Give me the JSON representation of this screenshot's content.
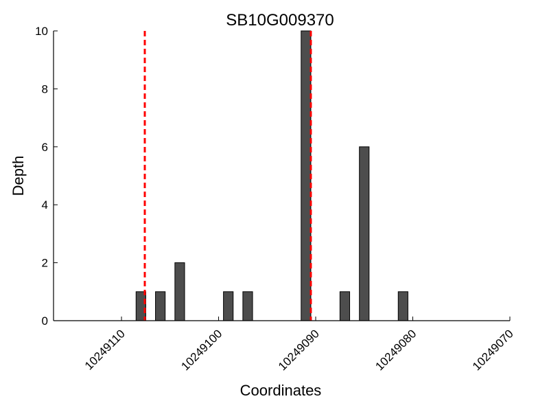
{
  "chart_data": {
    "type": "bar",
    "title": "SB10G009370",
    "xlabel": "Coordinates",
    "ylabel": "Depth",
    "x_reversed": true,
    "xlim": [
      10249117,
      10249070
    ],
    "ylim": [
      0,
      10
    ],
    "x_ticks": [
      10249110,
      10249100,
      10249090,
      10249080,
      10249070
    ],
    "y_ticks": [
      0,
      2,
      4,
      6,
      8,
      10
    ],
    "grid": false,
    "bar_color": "#4d4d4d",
    "bar_edge_color": "#000000",
    "bars": [
      {
        "x": 10249108,
        "value": 1
      },
      {
        "x": 10249106,
        "value": 1
      },
      {
        "x": 10249104,
        "value": 2
      },
      {
        "x": 10249099,
        "value": 1
      },
      {
        "x": 10249097,
        "value": 1
      },
      {
        "x": 10249091,
        "value": 10
      },
      {
        "x": 10249087,
        "value": 1
      },
      {
        "x": 10249085,
        "value": 6
      },
      {
        "x": 10249081,
        "value": 1
      }
    ],
    "bar_width": 1,
    "reference_lines": [
      {
        "x": 10249107.6,
        "color": "#ff0000",
        "style": "dashed"
      },
      {
        "x": 10249090.5,
        "color": "#ff0000",
        "style": "dashed"
      }
    ]
  }
}
